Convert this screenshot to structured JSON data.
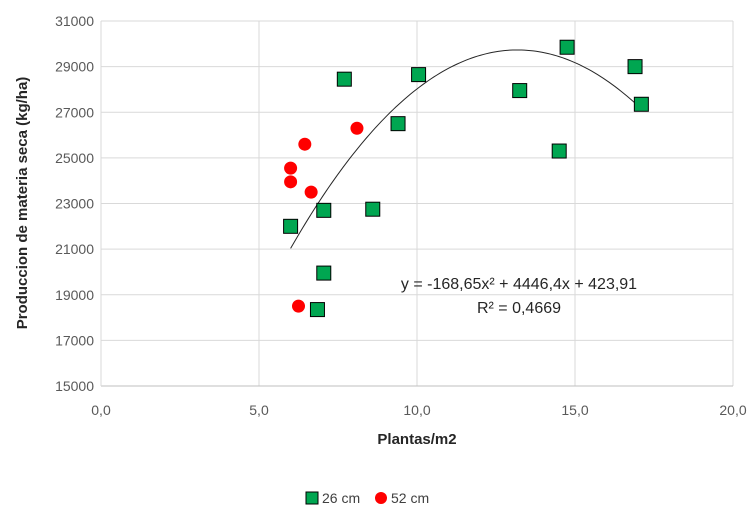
{
  "chart_data": {
    "type": "scatter",
    "xlabel": "Plantas/m2",
    "ylabel": "Produccion de materia seca (kg/ha)",
    "xlim": [
      0,
      20
    ],
    "ylim": [
      15000,
      31000
    ],
    "x_ticks": [
      0,
      5,
      10,
      15,
      20
    ],
    "x_tick_labels": [
      "0,0",
      "5,0",
      "10,0",
      "15,0",
      "20,0"
    ],
    "y_ticks": [
      15000,
      17000,
      19000,
      21000,
      23000,
      25000,
      27000,
      29000,
      31000
    ],
    "y_tick_labels": [
      "15000",
      "17000",
      "19000",
      "21000",
      "23000",
      "25000",
      "27000",
      "29000",
      "31000"
    ],
    "grid": true,
    "legend_position": "bottom",
    "series": [
      {
        "name": "26 cm",
        "marker": "square",
        "color": "#00a651",
        "points": [
          [
            6.0,
            22000
          ],
          [
            6.85,
            18350
          ],
          [
            7.05,
            22700
          ],
          [
            7.05,
            19950
          ],
          [
            7.7,
            28450
          ],
          [
            8.6,
            22750
          ],
          [
            9.4,
            26500
          ],
          [
            10.05,
            28650
          ],
          [
            13.25,
            27950
          ],
          [
            14.5,
            25300
          ],
          [
            14.75,
            29850
          ],
          [
            16.9,
            29000
          ],
          [
            17.1,
            27350
          ]
        ]
      },
      {
        "name": "52 cm",
        "marker": "circle",
        "color": "#ff0000",
        "points": [
          [
            6.0,
            24550
          ],
          [
            6.0,
            23950
          ],
          [
            6.25,
            18500
          ],
          [
            6.45,
            25600
          ],
          [
            6.65,
            23500
          ],
          [
            8.1,
            26300
          ]
        ]
      }
    ],
    "trendline": {
      "type": "polynomial",
      "coefficients": {
        "a": -168.65,
        "b": 4446.4,
        "c": 423.91
      },
      "x_range": [
        6.0,
        17.1
      ],
      "equation_label": "y = -168,65x² + 4446,4x + 423,91",
      "r2_label": "R² = 0,4669"
    }
  }
}
